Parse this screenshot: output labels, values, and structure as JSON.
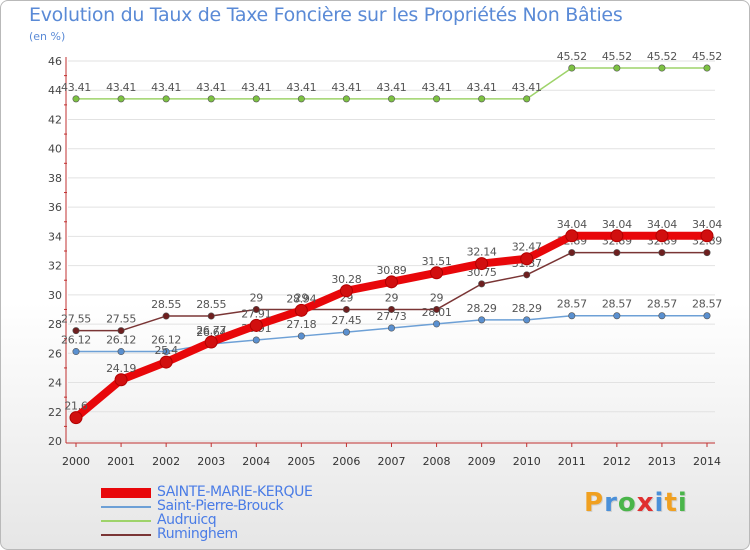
{
  "chart_data": {
    "type": "line",
    "title": "Evolution du Taux de Taxe Foncière sur les Propriétés Non Bâties",
    "unit_label": "(en %)",
    "x": [
      "2000",
      "2001",
      "2002",
      "2003",
      "2004",
      "2005",
      "2006",
      "2007",
      "2008",
      "2009",
      "2010",
      "2011",
      "2012",
      "2013",
      "2014"
    ],
    "ylim": [
      20,
      46
    ],
    "yticks": [
      20,
      22,
      24,
      26,
      28,
      30,
      32,
      34,
      36,
      38,
      40,
      42,
      44,
      46
    ],
    "grid": "horizontal",
    "legend_position": "bottom-left",
    "series": [
      {
        "name": "SAINTE-MARIE-KERQUE",
        "color": "#e8070a",
        "marker": "#d10f0f",
        "values": [
          21.6,
          24.19,
          25.4,
          26.77,
          27.91,
          28.94,
          30.28,
          30.89,
          31.51,
          32.14,
          32.47,
          34.04,
          34.04,
          34.04,
          34.04
        ],
        "labels": [
          "21.6",
          "24.19",
          "25.4",
          "26.77",
          "27.91",
          "28.94",
          "30.28",
          "30.89",
          "31.51",
          "32.14",
          "32.47",
          "34.04",
          "34.04",
          "34.04",
          "34.04"
        ]
      },
      {
        "name": "Saint-Pierre-Brouck",
        "color": "#6da0d6",
        "marker": "#5a90d0",
        "values": [
          26.12,
          26.12,
          26.12,
          26.64,
          26.91,
          27.18,
          27.45,
          27.73,
          28.01,
          28.29,
          28.29,
          28.57,
          28.57,
          28.57,
          28.57
        ],
        "labels": [
          "26.12",
          "26.12",
          "26.12",
          "26.64",
          "26.91",
          "27.18",
          "27.45",
          "27.73",
          "28.01",
          "28.29",
          "28.29",
          "28.57",
          "28.57",
          "28.57",
          "28.57"
        ]
      },
      {
        "name": "Audruicq",
        "color": "#9ed36a",
        "marker": "#7dc242",
        "values": [
          43.41,
          43.41,
          43.41,
          43.41,
          43.41,
          43.41,
          43.41,
          43.41,
          43.41,
          43.41,
          43.41,
          45.52,
          45.52,
          45.52,
          45.52
        ],
        "labels": [
          "43.41",
          "43.41",
          "43.41",
          "43.41",
          "43.41",
          "43.41",
          "43.41",
          "43.41",
          "43.41",
          "43.41",
          "43.41",
          "45.52",
          "45.52",
          "45.52",
          "45.52"
        ]
      },
      {
        "name": "Ruminghem",
        "color": "#7a3535",
        "marker": "#6e1f1f",
        "values": [
          27.55,
          27.55,
          28.55,
          28.55,
          29,
          29,
          29,
          29,
          29,
          30.75,
          31.37,
          32.89,
          32.89,
          32.89,
          32.89
        ],
        "labels": [
          "27.55",
          "27.55",
          "28.55",
          "28.55",
          "29",
          "29",
          "29",
          "29",
          "29",
          "30.75",
          "31.37",
          "32.89",
          "32.89",
          "32.89",
          "32.89"
        ]
      }
    ]
  },
  "brand": {
    "letters": [
      "P",
      "r",
      "o",
      "x",
      "i",
      "t",
      "i"
    ],
    "colors": [
      "#f0a020",
      "#4a90d9",
      "#4ab54a",
      "#e03030",
      "#4a90d9",
      "#f0a020",
      "#4ab54a"
    ]
  }
}
